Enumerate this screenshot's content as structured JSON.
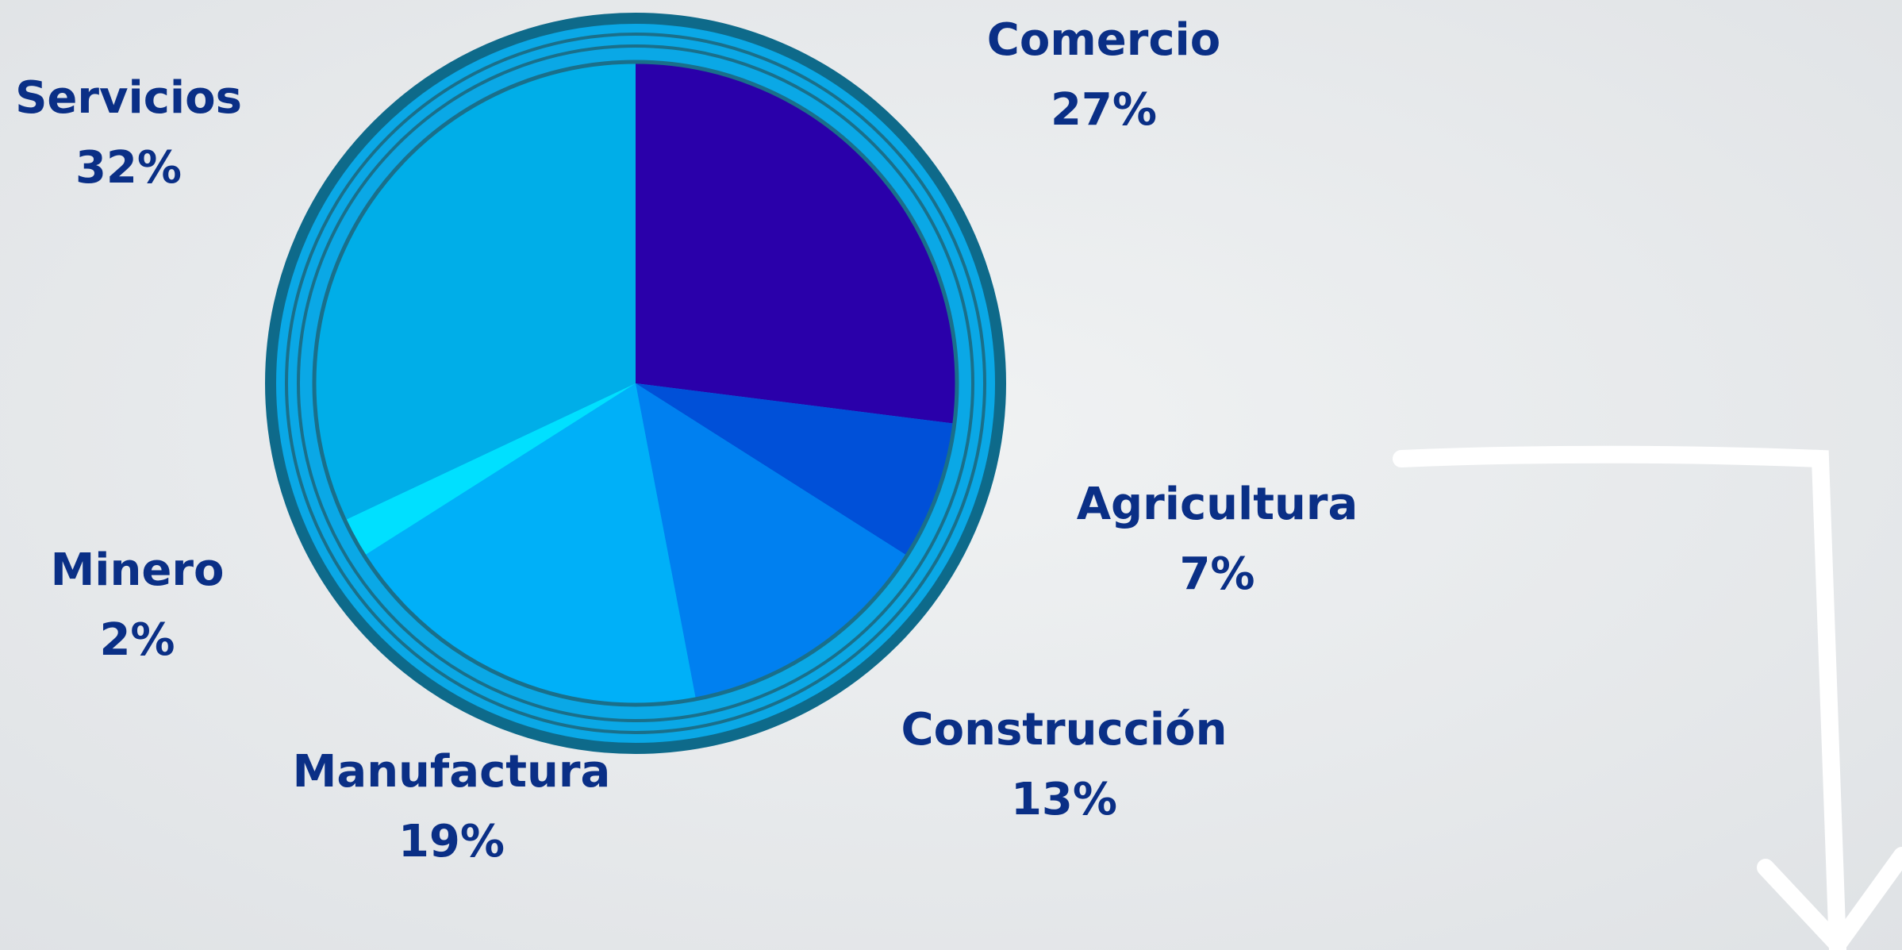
{
  "chart_data": {
    "type": "pie",
    "categories": [
      "Comercio",
      "Agricultura",
      "Construcción",
      "Manufactura",
      "Minero",
      "Servicios"
    ],
    "values": [
      27,
      7,
      13,
      19,
      2,
      32
    ],
    "value_labels": [
      "27%",
      "7%",
      "13%",
      "19%",
      "2%",
      "32%"
    ],
    "colors": [
      "#2a00aa",
      "#0050d8",
      "#0080f0",
      "#00b0f8",
      "#00e0ff",
      "#00aee8"
    ]
  }
}
